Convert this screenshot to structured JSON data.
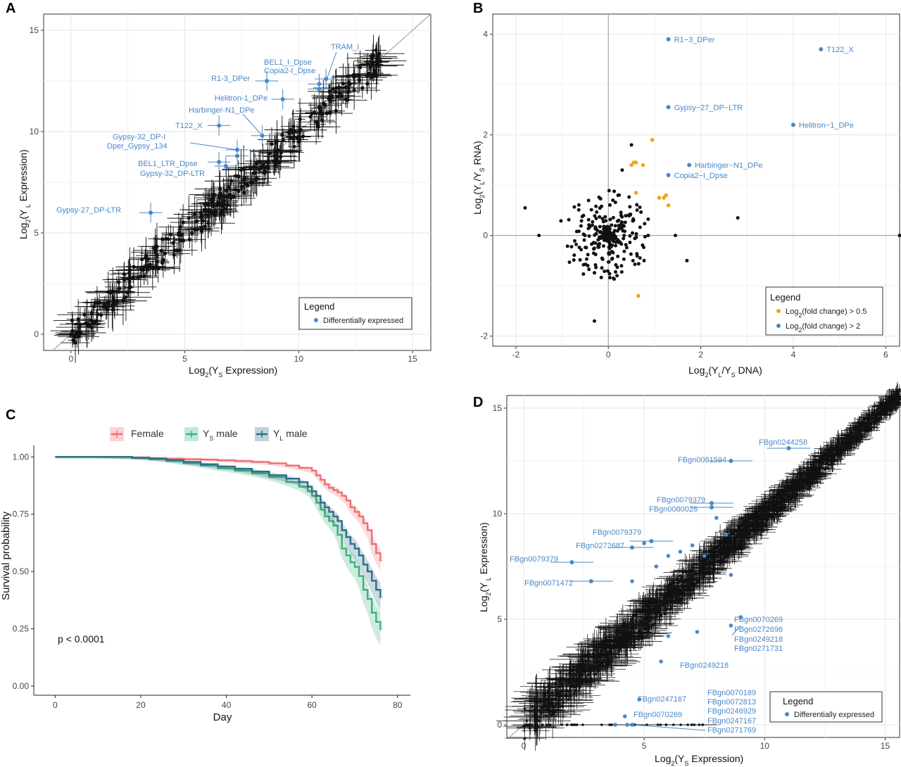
{
  "colors": {
    "black": "#111111",
    "blue": "#4a88c7",
    "orange": "#f2a31b",
    "female": "#ee6e73",
    "ys": "#3fb07a",
    "yl": "#2e6e86",
    "grid": "#e6e6e6",
    "diag": "#aaaaaa"
  },
  "panel_labels": [
    "A",
    "B",
    "C",
    "D"
  ],
  "chart_data": [
    {
      "panel": "A",
      "type": "scatter",
      "xlabel": {
        "pre": "Log",
        "sub1": "2",
        "mid": "(Y",
        "sub2": "S",
        "post": " Expression)"
      },
      "ylabel": {
        "pre": "Log",
        "sub1": "2",
        "mid": "(Y",
        "sub2": " L",
        "post": " Expression)"
      },
      "xlim": [
        -1.2,
        15.8
      ],
      "ylim": [
        -0.8,
        15.8
      ],
      "xticks": [
        "0",
        "5",
        "10",
        "15"
      ],
      "yticks": [
        "0",
        "5",
        "10",
        "15"
      ],
      "legend": {
        "title": "Legend",
        "entries": [
          "Differentially expressed"
        ],
        "position": "bottom-right"
      },
      "highlighted": [
        {
          "label": "TRAM_I",
          "x": 11.2,
          "y": 12.6
        },
        {
          "label": "BEL1_I_Dpse",
          "x": 10.9,
          "y": 12.35
        },
        {
          "label": "Copia2-I_Dpse",
          "x": 10.9,
          "y": 12.1
        },
        {
          "label": "R1-3_DPer",
          "x": 8.6,
          "y": 12.5
        },
        {
          "label": "Helitron-1_DPe",
          "x": 9.3,
          "y": 11.6
        },
        {
          "label": "Harbinger-N1_DPe",
          "x": 8.4,
          "y": 9.8
        },
        {
          "label": "T122_X",
          "x": 6.5,
          "y": 10.3
        },
        {
          "label": "Gypsy-32_DP-I",
          "x": 7.3,
          "y": 9.1
        },
        {
          "label": "Dper_Gypsy_134",
          "x": 7.3,
          "y": 8.8
        },
        {
          "label": "BEL1_LTR_Dpse",
          "x": 6.5,
          "y": 8.5
        },
        {
          "label": "Gypsy-32_DP-LTR",
          "x": 6.8,
          "y": 8.3
        },
        {
          "label": "Gypsy-27_DP-LTR",
          "x": 3.5,
          "y": 6.0
        }
      ]
    },
    {
      "panel": "B",
      "type": "scatter",
      "xlabel": {
        "pre": "Log",
        "sub1": "2",
        "mid": "(Y",
        "sub2": "L",
        "mid2": "/Y",
        "sub3": "S",
        "post": "  DNA)"
      },
      "ylabel": {
        "pre": "Log",
        "sub1": "2",
        "mid": "(Y",
        "sub2": "L",
        "mid2": "/Y",
        "sub3": "S",
        "post": " RNA)"
      },
      "xlim": [
        -2.5,
        6.3
      ],
      "ylim": [
        -2.2,
        4.4
      ],
      "xticks": [
        "-2",
        "0",
        "2",
        "4",
        "6"
      ],
      "yticks": [
        "-2",
        "0",
        "2",
        "4"
      ],
      "legend": {
        "title": "Legend",
        "entries": [
          "Log2(fold change) > 0.5",
          "Log2(fold change) > 2"
        ],
        "entries_pre": [
          "Log",
          "Log"
        ],
        "entries_sub": [
          "2",
          "2"
        ],
        "entries_post": [
          "(fold change) > 0.5",
          "(fold change) > 2"
        ],
        "position": "bottom-right"
      },
      "highlighted": [
        {
          "label": "R1−3_DPer",
          "x": 1.3,
          "y": 3.9
        },
        {
          "label": "T122_X",
          "x": 4.6,
          "y": 3.7
        },
        {
          "label": "Gypsy−27_DP−LTR",
          "x": 1.3,
          "y": 2.55
        },
        {
          "label": "Helitron−1_DPe",
          "x": 4.0,
          "y": 2.2
        },
        {
          "label": "Harbinger−N1_DPe",
          "x": 1.75,
          "y": 1.4
        },
        {
          "label": "Copia2−I_Dpse",
          "x": 1.3,
          "y": 1.2
        }
      ],
      "orange_points": [
        [
          0.95,
          1.9
        ],
        [
          0.55,
          1.45
        ],
        [
          0.6,
          1.45
        ],
        [
          0.75,
          1.4
        ],
        [
          0.5,
          1.4
        ],
        [
          0.6,
          0.85
        ],
        [
          1.1,
          0.75
        ],
        [
          1.2,
          0.75
        ],
        [
          1.25,
          0.8
        ],
        [
          1.3,
          0.6
        ],
        [
          0.65,
          -1.2
        ]
      ]
    },
    {
      "panel": "C",
      "type": "line",
      "xlabel": "Day",
      "ylabel": "Survival probability",
      "xlim": [
        -5,
        83
      ],
      "ylim": [
        -0.04,
        1.05
      ],
      "xticks": [
        "0",
        "20",
        "40",
        "60",
        "80"
      ],
      "yticks": [
        "0.00",
        "0.25",
        "0.50",
        "0.75",
        "1.00"
      ],
      "annotation": "p < 0.0001",
      "legend": {
        "position": "top",
        "entries": [
          {
            "name": "Female"
          },
          {
            "name": "Ys male",
            "pre": "Y",
            "sub": "S",
            "post": " male"
          },
          {
            "name": "YL male",
            "pre": "Y",
            "sub": "L",
            "post": " male"
          }
        ]
      },
      "series": [
        {
          "name": "Female",
          "x": [
            0,
            10,
            18,
            22,
            26,
            30,
            34,
            38,
            42,
            46,
            50,
            54,
            57,
            60,
            61,
            62,
            63,
            64,
            65,
            66,
            67,
            68,
            69,
            70,
            71,
            72,
            73,
            74,
            75,
            76
          ],
          "y": [
            1.0,
            1.0,
            0.998,
            0.995,
            0.992,
            0.99,
            0.988,
            0.985,
            0.982,
            0.978,
            0.972,
            0.962,
            0.952,
            0.94,
            0.92,
            0.9,
            0.88,
            0.865,
            0.855,
            0.845,
            0.83,
            0.81,
            0.78,
            0.76,
            0.74,
            0.71,
            0.68,
            0.62,
            0.58,
            0.55
          ]
        },
        {
          "name": "Ys male",
          "x": [
            0,
            10,
            18,
            22,
            26,
            30,
            34,
            38,
            42,
            46,
            50,
            54,
            57,
            59,
            60,
            61,
            62,
            63,
            64,
            65,
            66,
            67,
            68,
            69,
            70,
            71,
            72,
            73,
            74,
            75,
            76
          ],
          "y": [
            1.0,
            1.0,
            0.995,
            0.99,
            0.982,
            0.972,
            0.962,
            0.95,
            0.94,
            0.928,
            0.912,
            0.89,
            0.87,
            0.85,
            0.83,
            0.8,
            0.77,
            0.74,
            0.72,
            0.7,
            0.66,
            0.6,
            0.57,
            0.54,
            0.52,
            0.48,
            0.42,
            0.38,
            0.32,
            0.28,
            0.25
          ]
        },
        {
          "name": "YL male",
          "x": [
            0,
            10,
            18,
            22,
            26,
            30,
            34,
            38,
            42,
            46,
            50,
            54,
            57,
            59,
            60,
            61,
            62,
            63,
            64,
            65,
            66,
            67,
            68,
            69,
            70,
            71,
            72,
            73,
            74,
            75,
            76
          ],
          "y": [
            1.0,
            1.0,
            0.996,
            0.992,
            0.986,
            0.978,
            0.968,
            0.958,
            0.948,
            0.936,
            0.92,
            0.905,
            0.89,
            0.87,
            0.85,
            0.83,
            0.8,
            0.78,
            0.76,
            0.74,
            0.72,
            0.68,
            0.65,
            0.62,
            0.6,
            0.57,
            0.53,
            0.5,
            0.46,
            0.42,
            0.39
          ]
        }
      ]
    },
    {
      "panel": "D",
      "type": "scatter",
      "xlabel": {
        "pre": "Log",
        "sub1": "2",
        "mid": "(Y",
        "sub2": "S",
        "post": " Expression)"
      },
      "ylabel": {
        "pre": "Log",
        "sub1": "2",
        "mid": "(Y",
        "sub2": " L",
        "post": " Expression)"
      },
      "xlim": [
        -0.2,
        15.8
      ],
      "ylim": [
        -0.2,
        15.8
      ],
      "xticks": [
        "0",
        "5",
        "10",
        "15"
      ],
      "yticks": [
        "0",
        "5",
        "10",
        "15"
      ],
      "legend": {
        "title": "Legend",
        "entries": [
          "Differentially expressed"
        ],
        "position": "bottom-right"
      },
      "labels_top": [
        {
          "label": "FBgn0244258",
          "x": 11.0,
          "y": 13.1
        },
        {
          "label": "FBgn0081594",
          "x": 8.6,
          "y": 12.5
        },
        {
          "label": "FBgn0079379",
          "x": 7.8,
          "y": 10.5
        },
        {
          "label": "FBgn0080026",
          "x": 7.8,
          "y": 10.3
        },
        {
          "label": "FBgn0079379",
          "x": 5.3,
          "y": 8.7
        },
        {
          "label": "FBgn0272687",
          "x": 4.5,
          "y": 8.4
        },
        {
          "label": "FBgn0079379",
          "x": 2.0,
          "y": 7.7
        },
        {
          "label": "FBgn0071472",
          "x": 2.8,
          "y": 6.8
        }
      ],
      "labels_bottom": [
        {
          "label": "FBgn0070269"
        },
        {
          "label": "FBgn0272696"
        },
        {
          "label": "FBgn0249218"
        },
        {
          "label": "FBgn0271731"
        },
        {
          "label": "FBgn0249218"
        },
        {
          "label": "FBgn0247167"
        },
        {
          "label": "FBgn0070269"
        },
        {
          "label": "FBgn0070189"
        },
        {
          "label": "FBgn0072813"
        },
        {
          "label": "FBgn0246929"
        },
        {
          "label": "FBgn0247167"
        },
        {
          "label": "FBgn0271769"
        }
      ]
    }
  ]
}
